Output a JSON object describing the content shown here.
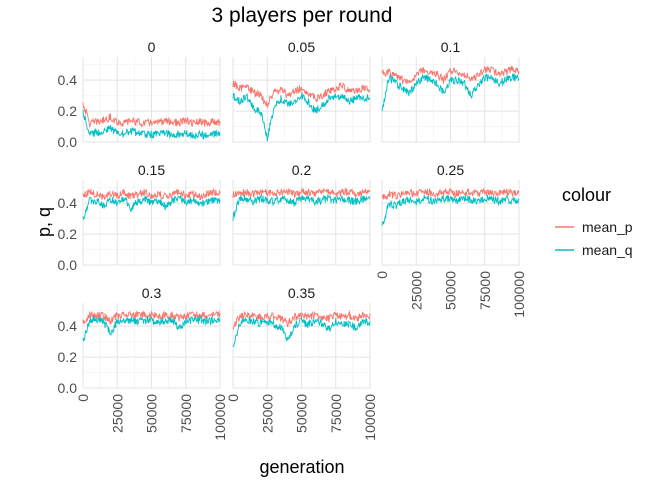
{
  "chart_data": {
    "type": "line",
    "title": "3 players per round",
    "xlabel": "generation",
    "ylabel": "p, q",
    "xlim": [
      0,
      100000
    ],
    "ylim": [
      0,
      0.55
    ],
    "x_ticks": [
      0,
      25000,
      50000,
      75000,
      100000
    ],
    "y_ticks": [
      0.0,
      0.2,
      0.4
    ],
    "y_tick_labels": [
      "0.0",
      "0.2",
      "0.4"
    ],
    "grid": true,
    "legend": {
      "title": "colour",
      "position": "right",
      "entries": [
        "mean_p",
        "mean_q"
      ]
    },
    "colors": {
      "mean_p": "#F8766D",
      "mean_q": "#00BFC4"
    },
    "x": [
      0,
      5000,
      10000,
      15000,
      20000,
      25000,
      30000,
      35000,
      40000,
      45000,
      50000,
      55000,
      60000,
      65000,
      70000,
      75000,
      80000,
      85000,
      90000,
      95000,
      100000
    ],
    "panels": [
      {
        "label": "0",
        "series": [
          {
            "name": "mean_p",
            "values": [
              0.25,
              0.12,
              0.13,
              0.14,
              0.16,
              0.13,
              0.12,
              0.14,
              0.13,
              0.12,
              0.13,
              0.12,
              0.14,
              0.13,
              0.12,
              0.14,
              0.12,
              0.13,
              0.12,
              0.13,
              0.13
            ]
          },
          {
            "name": "mean_q",
            "values": [
              0.2,
              0.05,
              0.06,
              0.07,
              0.09,
              0.06,
              0.05,
              0.07,
              0.06,
              0.05,
              0.05,
              0.05,
              0.06,
              0.05,
              0.05,
              0.06,
              0.04,
              0.05,
              0.04,
              0.05,
              0.05
            ]
          }
        ]
      },
      {
        "label": "0.05",
        "series": [
          {
            "name": "mean_p",
            "values": [
              0.38,
              0.35,
              0.36,
              0.32,
              0.3,
              0.24,
              0.32,
              0.34,
              0.3,
              0.33,
              0.35,
              0.32,
              0.28,
              0.3,
              0.33,
              0.35,
              0.36,
              0.33,
              0.34,
              0.35,
              0.34
            ]
          },
          {
            "name": "mean_q",
            "values": [
              0.3,
              0.26,
              0.3,
              0.22,
              0.2,
              0.03,
              0.22,
              0.28,
              0.24,
              0.26,
              0.3,
              0.26,
              0.2,
              0.24,
              0.28,
              0.3,
              0.29,
              0.26,
              0.28,
              0.29,
              0.28
            ]
          }
        ]
      },
      {
        "label": "0.1",
        "series": [
          {
            "name": "mean_p",
            "values": [
              0.45,
              0.45,
              0.43,
              0.4,
              0.38,
              0.43,
              0.47,
              0.45,
              0.44,
              0.4,
              0.46,
              0.45,
              0.44,
              0.4,
              0.43,
              0.47,
              0.46,
              0.44,
              0.45,
              0.47,
              0.46
            ]
          },
          {
            "name": "mean_q",
            "values": [
              0.2,
              0.42,
              0.38,
              0.35,
              0.32,
              0.38,
              0.42,
              0.4,
              0.38,
              0.32,
              0.4,
              0.4,
              0.38,
              0.3,
              0.36,
              0.42,
              0.41,
              0.38,
              0.4,
              0.42,
              0.41
            ]
          }
        ]
      },
      {
        "label": "0.15",
        "series": [
          {
            "name": "mean_p",
            "values": [
              0.45,
              0.47,
              0.46,
              0.44,
              0.46,
              0.45,
              0.47,
              0.44,
              0.46,
              0.47,
              0.45,
              0.46,
              0.44,
              0.46,
              0.47,
              0.45,
              0.46,
              0.44,
              0.46,
              0.47,
              0.46
            ]
          },
          {
            "name": "mean_q",
            "values": [
              0.3,
              0.42,
              0.41,
              0.38,
              0.42,
              0.4,
              0.43,
              0.37,
              0.41,
              0.43,
              0.4,
              0.42,
              0.38,
              0.41,
              0.43,
              0.4,
              0.42,
              0.39,
              0.41,
              0.42,
              0.42
            ]
          }
        ]
      },
      {
        "label": "0.2",
        "series": [
          {
            "name": "mean_p",
            "values": [
              0.45,
              0.47,
              0.47,
              0.46,
              0.47,
              0.47,
              0.46,
              0.47,
              0.47,
              0.46,
              0.47,
              0.47,
              0.46,
              0.47,
              0.47,
              0.46,
              0.47,
              0.47,
              0.46,
              0.47,
              0.47
            ]
          },
          {
            "name": "mean_q",
            "values": [
              0.3,
              0.43,
              0.43,
              0.41,
              0.43,
              0.42,
              0.41,
              0.43,
              0.42,
              0.4,
              0.43,
              0.43,
              0.41,
              0.42,
              0.43,
              0.41,
              0.43,
              0.42,
              0.41,
              0.43,
              0.42
            ]
          }
        ]
      },
      {
        "label": "0.25",
        "series": [
          {
            "name": "mean_p",
            "values": [
              0.43,
              0.46,
              0.45,
              0.46,
              0.47,
              0.46,
              0.47,
              0.47,
              0.46,
              0.47,
              0.47,
              0.46,
              0.47,
              0.47,
              0.46,
              0.47,
              0.47,
              0.46,
              0.47,
              0.47,
              0.47
            ]
          },
          {
            "name": "mean_q",
            "values": [
              0.25,
              0.4,
              0.38,
              0.41,
              0.42,
              0.41,
              0.43,
              0.42,
              0.41,
              0.43,
              0.43,
              0.41,
              0.43,
              0.42,
              0.41,
              0.43,
              0.43,
              0.41,
              0.43,
              0.42,
              0.42
            ]
          }
        ]
      },
      {
        "label": "0.3",
        "series": [
          {
            "name": "mean_p",
            "values": [
              0.42,
              0.47,
              0.47,
              0.47,
              0.43,
              0.47,
              0.47,
              0.47,
              0.47,
              0.47,
              0.47,
              0.46,
              0.47,
              0.47,
              0.45,
              0.47,
              0.47,
              0.47,
              0.47,
              0.47,
              0.47
            ]
          },
          {
            "name": "mean_q",
            "values": [
              0.3,
              0.44,
              0.44,
              0.43,
              0.35,
              0.43,
              0.44,
              0.44,
              0.43,
              0.44,
              0.44,
              0.42,
              0.43,
              0.44,
              0.38,
              0.43,
              0.44,
              0.44,
              0.43,
              0.44,
              0.44
            ]
          }
        ]
      },
      {
        "label": "0.35",
        "series": [
          {
            "name": "mean_p",
            "values": [
              0.4,
              0.46,
              0.47,
              0.47,
              0.46,
              0.47,
              0.46,
              0.45,
              0.42,
              0.46,
              0.47,
              0.46,
              0.47,
              0.46,
              0.45,
              0.47,
              0.46,
              0.47,
              0.45,
              0.47,
              0.47
            ]
          },
          {
            "name": "mean_q",
            "values": [
              0.28,
              0.42,
              0.44,
              0.43,
              0.42,
              0.43,
              0.41,
              0.39,
              0.3,
              0.41,
              0.43,
              0.41,
              0.43,
              0.42,
              0.38,
              0.43,
              0.41,
              0.42,
              0.38,
              0.43,
              0.42
            ]
          }
        ]
      }
    ]
  }
}
